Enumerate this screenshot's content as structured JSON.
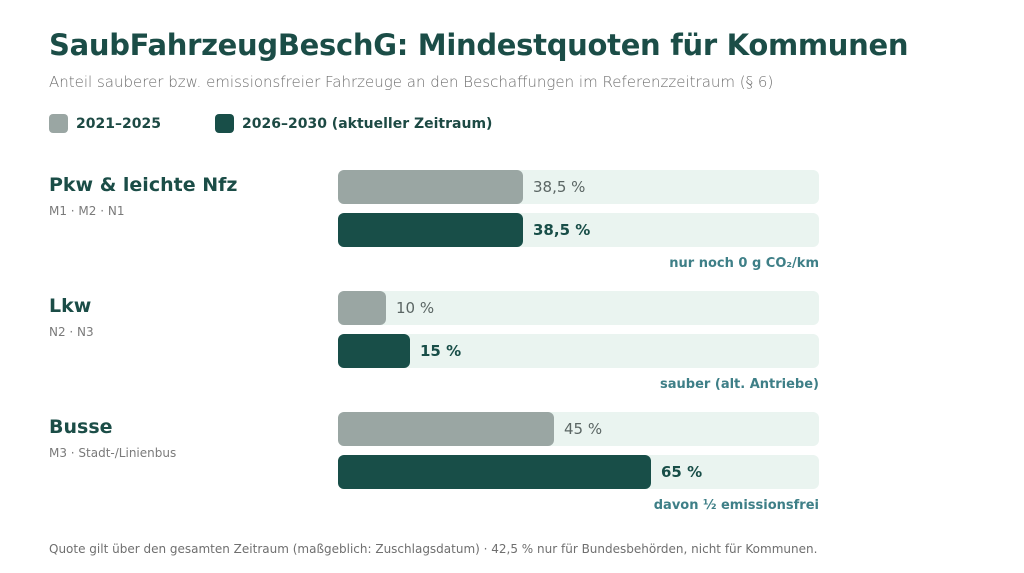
{
  "title": "SaubFahrzeugBeschG: Mindestquoten für Kommunen",
  "subtitle": "Anteil sauberer bzw. emissionsfreier Fahrzeuge an den Beschaffungen im Referenzzeitraum (§ 6)",
  "footnote": "Quote gilt über den gesamten Zeitraum (maßgeblich: Zuschlagsdatum) · 42,5 % nur für Bundesbehörden, nicht für Kommunen.",
  "colors": {
    "track": "#eaf4f0",
    "series1": "#9aa6a3",
    "series2": "#184e48"
  },
  "chart_data": {
    "type": "bar",
    "orientation": "horizontal",
    "xlim": [
      0,
      100
    ],
    "legend_placement": "top-left",
    "series": [
      {
        "name": "2021–2025",
        "color": "#9aa6a3",
        "values": [
          38.5,
          10,
          45
        ],
        "labels": [
          "38,5 %",
          "10 %",
          "45 %"
        ]
      },
      {
        "name": "2026–2030 (aktueller Zeitraum)",
        "color": "#184e48",
        "values": [
          38.5,
          15,
          65
        ],
        "labels": [
          "38,5 %",
          "15 %",
          "65 %"
        ]
      }
    ],
    "categories": [
      {
        "name": "Pkw & leichte Nfz",
        "sub": "M1 · M2 · N1",
        "note": "nur noch 0 g CO₂/km"
      },
      {
        "name": "Lkw",
        "sub": "N2 · N3",
        "note": "sauber (alt. Antriebe)"
      },
      {
        "name": "Busse",
        "sub": "M3 · Stadt-/Linienbus",
        "note": "davon ½ emissionsfrei"
      }
    ]
  }
}
